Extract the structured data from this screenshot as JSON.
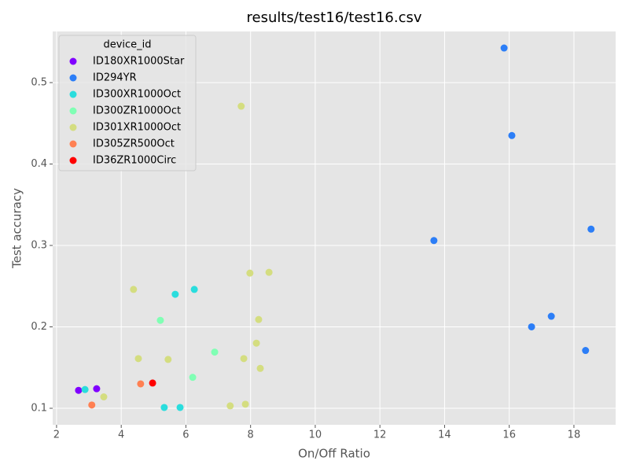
{
  "chart_data": {
    "type": "scatter",
    "title": "results/test16/test16.csv",
    "x_label": "On/Off Ratio",
    "y_label": "Test accuracy",
    "legend_title": "device_id",
    "legend_position": "upper left",
    "grid": true,
    "xlim": [
      1.88,
      19.29
    ],
    "xticks": [
      2,
      4,
      6,
      8,
      10,
      12,
      14,
      16,
      18
    ],
    "ylim": [
      0.0797,
      0.5628
    ],
    "yticks": [
      0.1,
      0.2,
      0.3,
      0.4,
      0.5
    ],
    "series": [
      {
        "name": "ID180XR1000Star",
        "color": "#8000ff",
        "x": [
          2.68,
          3.24
        ],
        "y": [
          0.122,
          0.124
        ]
      },
      {
        "name": "ID294YR",
        "color": "#2c7ef7",
        "x": [
          15.84,
          16.08,
          13.67,
          18.53,
          17.3,
          16.69,
          18.36
        ],
        "y": [
          0.5425,
          0.435,
          0.306,
          0.32,
          0.213,
          0.2,
          0.171
        ]
      },
      {
        "name": "ID300XR1000Oct",
        "color": "#2adddd",
        "x": [
          2.88,
          6.26,
          5.67,
          5.33,
          5.82
        ],
        "y": [
          0.123,
          0.246,
          0.24,
          0.101,
          0.101
        ]
      },
      {
        "name": "ID300ZR1000Oct",
        "color": "#80ffb4",
        "x": [
          5.21,
          6.89,
          6.21
        ],
        "y": [
          0.208,
          0.169,
          0.138
        ]
      },
      {
        "name": "ID301XR1000Oct",
        "color": "#d4dd80",
        "x": [
          7.71,
          7.98,
          8.57,
          4.38,
          8.25,
          8.18,
          4.53,
          5.45,
          7.79,
          8.3,
          3.46,
          7.37,
          7.84
        ],
        "y": [
          0.471,
          0.266,
          0.267,
          0.246,
          0.209,
          0.18,
          0.161,
          0.16,
          0.161,
          0.149,
          0.114,
          0.103,
          0.105
        ]
      },
      {
        "name": "ID305ZR500Oct",
        "color": "#ff8052",
        "x": [
          4.6,
          3.09
        ],
        "y": [
          0.13,
          0.104
        ]
      },
      {
        "name": "ID36ZR1000Circ",
        "color": "#ff0000",
        "x": [
          4.97
        ],
        "y": [
          0.131
        ]
      }
    ]
  }
}
